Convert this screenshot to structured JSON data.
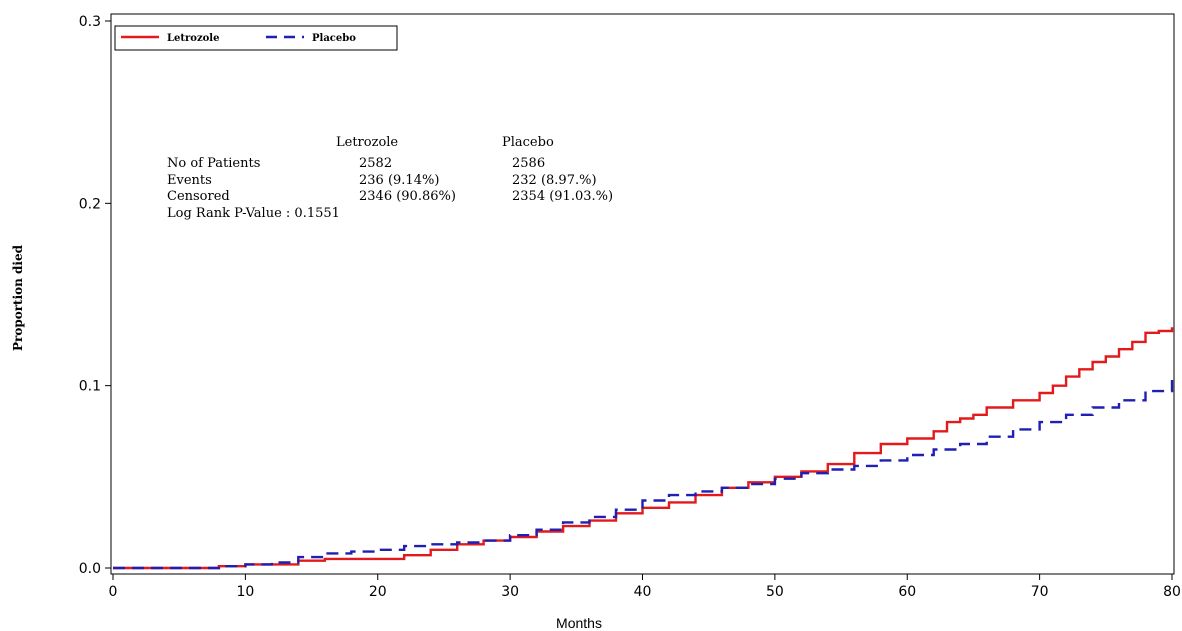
{
  "chart_data": {
    "type": "line",
    "title": "",
    "xlabel": "Months",
    "ylabel": "Proportion died",
    "xlim": [
      0,
      80
    ],
    "ylim": [
      0,
      0.3
    ],
    "x_ticks": [
      "0",
      "10",
      "20",
      "30",
      "40",
      "50",
      "60",
      "70",
      "80"
    ],
    "y_ticks": [
      "0.0",
      "0.1",
      "0.2",
      "0.3"
    ],
    "grid": false,
    "legend_position": "top-left",
    "series": [
      {
        "name": "Letrozole",
        "color": "#e31a1c",
        "style": "solid",
        "x": [
          0,
          5,
          8,
          10,
          12,
          14,
          16,
          18,
          20,
          22,
          24,
          26,
          28,
          30,
          32,
          34,
          36,
          38,
          40,
          42,
          44,
          46,
          48,
          50,
          52,
          54,
          56,
          58,
          60,
          62,
          63,
          64,
          65,
          66,
          68,
          70,
          71,
          72,
          73,
          74,
          75,
          76,
          77,
          78,
          79,
          80
        ],
        "y": [
          0.0,
          0.0,
          0.001,
          0.002,
          0.002,
          0.004,
          0.005,
          0.005,
          0.005,
          0.007,
          0.01,
          0.013,
          0.015,
          0.017,
          0.02,
          0.023,
          0.026,
          0.03,
          0.033,
          0.036,
          0.04,
          0.044,
          0.047,
          0.05,
          0.053,
          0.057,
          0.063,
          0.068,
          0.071,
          0.075,
          0.08,
          0.082,
          0.084,
          0.088,
          0.092,
          0.096,
          0.1,
          0.105,
          0.109,
          0.113,
          0.116,
          0.12,
          0.124,
          0.129,
          0.13,
          0.132
        ]
      },
      {
        "name": "Placebo",
        "color": "#1f1fb4",
        "style": "dashed",
        "x": [
          0,
          5,
          8,
          10,
          12,
          14,
          16,
          18,
          20,
          22,
          24,
          26,
          28,
          30,
          32,
          34,
          36,
          38,
          40,
          42,
          44,
          46,
          48,
          50,
          52,
          54,
          56,
          58,
          60,
          62,
          64,
          66,
          68,
          70,
          72,
          74,
          76,
          78,
          80
        ],
        "y": [
          0.0,
          0.0,
          0.001,
          0.002,
          0.003,
          0.006,
          0.008,
          0.009,
          0.01,
          0.012,
          0.013,
          0.014,
          0.015,
          0.018,
          0.021,
          0.025,
          0.028,
          0.032,
          0.037,
          0.04,
          0.042,
          0.044,
          0.046,
          0.049,
          0.052,
          0.054,
          0.056,
          0.059,
          0.062,
          0.065,
          0.068,
          0.072,
          0.076,
          0.08,
          0.084,
          0.088,
          0.092,
          0.097,
          0.104
        ]
      }
    ]
  },
  "stats_table": {
    "col_headers": [
      "Letrozole",
      "Placebo"
    ],
    "rows": [
      {
        "label": "No of Patients",
        "letrozole": "2582",
        "placebo": "2586"
      },
      {
        "label": "Events",
        "letrozole": "236 (9.14%)",
        "placebo": "232 (8.97.%)"
      },
      {
        "label": "Censored",
        "letrozole": "2346 (90.86%)",
        "placebo": "2354 (91.03.%)"
      }
    ],
    "pvalue_line": "Log Rank P-Value : 0.1551"
  }
}
